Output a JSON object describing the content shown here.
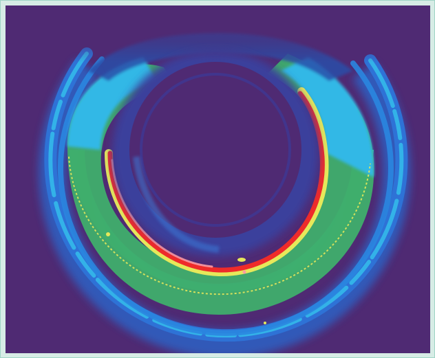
{
  "image": {
    "kind": "false-color thermal image of a circular ring",
    "palette": {
      "background": "#4f2a73",
      "deep_blue": "#2c4ea8",
      "blue": "#3a78d6",
      "cyan": "#31b8e6",
      "teal": "#2fc6b4",
      "green": "#3fb06e",
      "yellow": "#e6e85a",
      "red": "#ef2b2a",
      "pink": "#ff9aa2"
    }
  }
}
